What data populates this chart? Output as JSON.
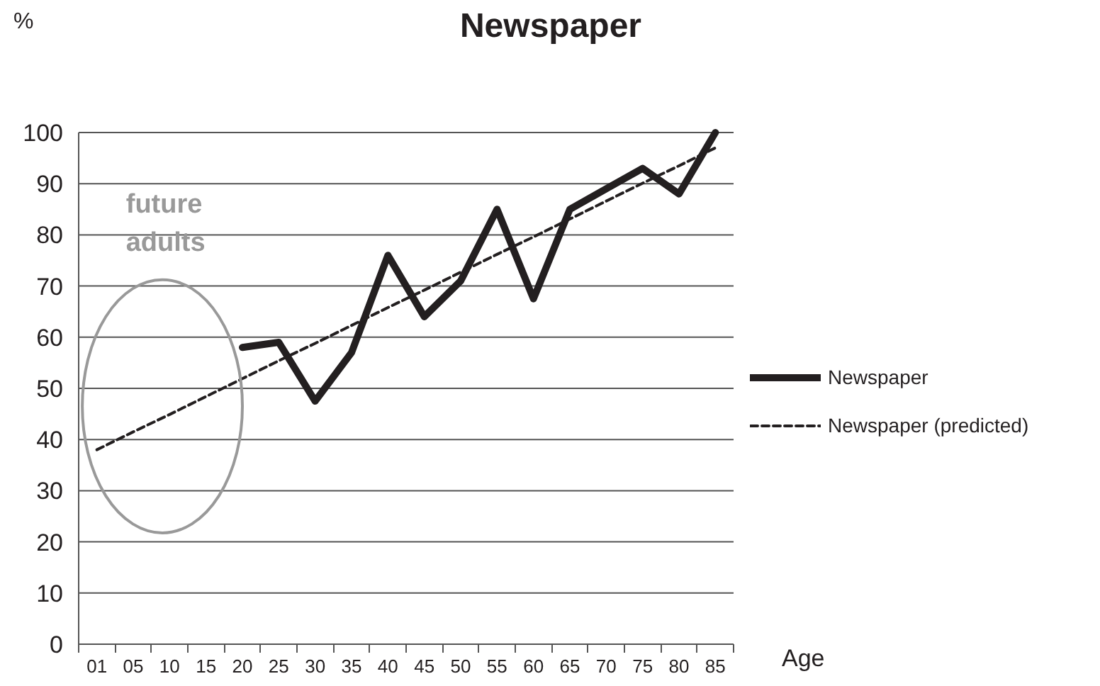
{
  "chart_data": {
    "type": "line",
    "title": "Newspaper",
    "xlabel": "Age",
    "ylabel": "%",
    "categories": [
      "01",
      "05",
      "10",
      "15",
      "20",
      "25",
      "30",
      "35",
      "40",
      "45",
      "50",
      "55",
      "60",
      "65",
      "70",
      "75",
      "80",
      "85"
    ],
    "series": [
      {
        "name": "Newspaper",
        "color": "#231f20",
        "line_style": "solid",
        "values": [
          null,
          null,
          null,
          null,
          58,
          59,
          47.5,
          57,
          76,
          64,
          71,
          85,
          67.5,
          85,
          89,
          93,
          88,
          100
        ]
      },
      {
        "name": "Newspaper (predicted)",
        "color": "#231f20",
        "line_style": "dashed",
        "values": [
          38,
          41.5,
          44.9,
          48.4,
          51.9,
          55.4,
          58.8,
          62.3,
          65.8,
          69.2,
          72.7,
          76.2,
          79.6,
          83.1,
          86.6,
          90.1,
          93.5,
          97
        ]
      }
    ],
    "annotations": [
      "future adults"
    ],
    "ylim": [
      0,
      100
    ],
    "yticks": [
      0,
      10,
      20,
      30,
      40,
      50,
      60,
      70,
      80,
      90,
      100
    ],
    "grid": "y",
    "legend": "right",
    "marker": "none"
  }
}
